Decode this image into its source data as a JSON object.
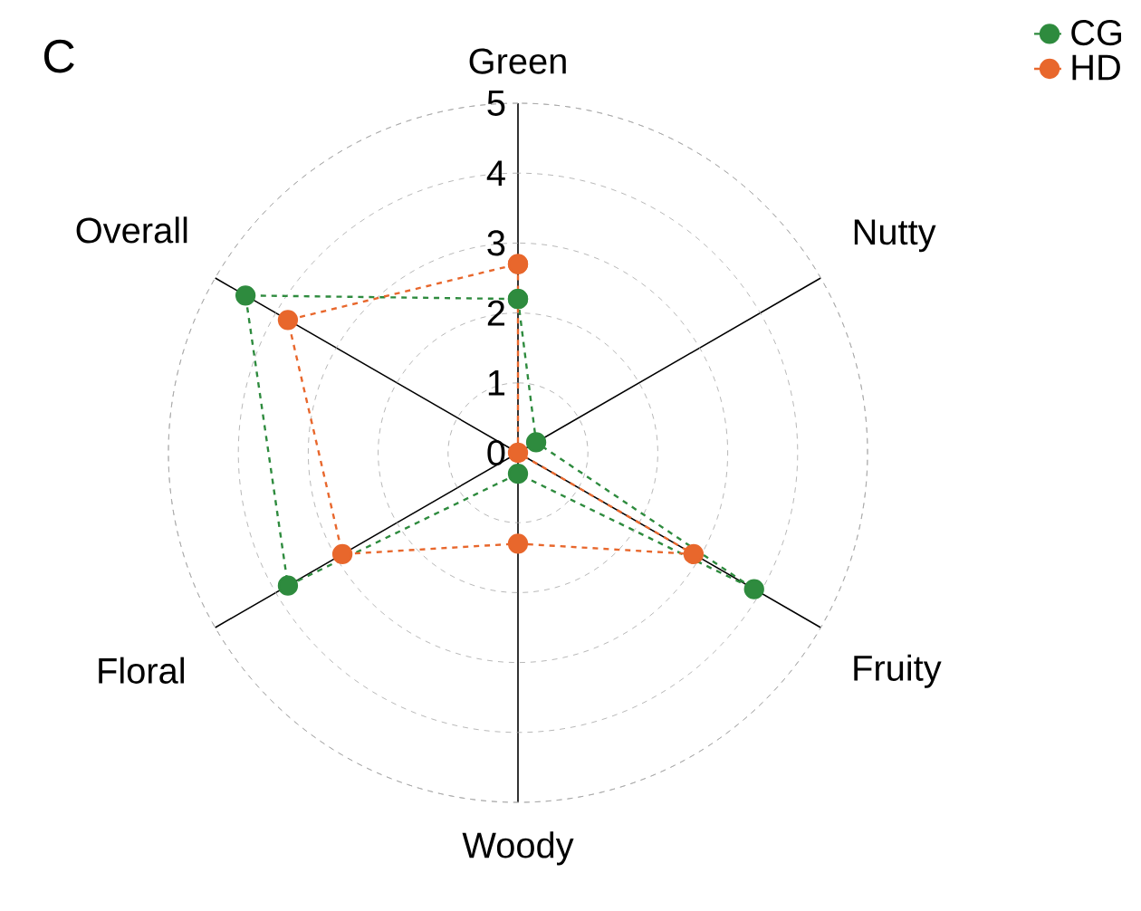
{
  "chart_data": {
    "type": "radar",
    "title": "C",
    "categories": [
      "Green",
      "Nutty",
      "Fruity",
      "Woody",
      "Floral",
      "Overall"
    ],
    "series": [
      {
        "name": "CG",
        "color": "#2e8b3e",
        "values": [
          2.2,
          0.3,
          3.9,
          0.3,
          3.8,
          4.5
        ]
      },
      {
        "name": "HD",
        "color": "#e8672c",
        "values": [
          2.7,
          0,
          2.9,
          1.3,
          2.9,
          3.8
        ]
      }
    ],
    "ylim": [
      0,
      5
    ],
    "yticks": [
      0,
      1,
      2,
      3,
      4,
      5
    ],
    "grid": true,
    "legend": "top right",
    "marker": "circle",
    "line_style": "dashed"
  }
}
